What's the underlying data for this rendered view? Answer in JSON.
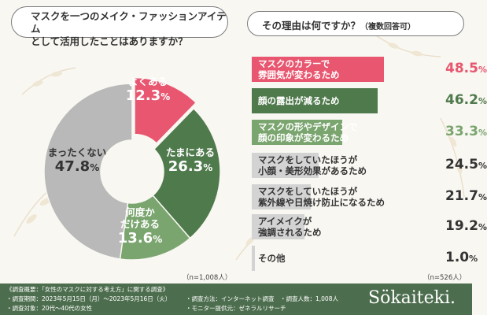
{
  "left_question": {
    "line1": "マスクを一つのメイク・ファッションアイテム",
    "line2": "として活用したことはありますか？",
    "n_note": "（n=1,008人）"
  },
  "right_question": {
    "main": "その理由は何ですか？",
    "sub": "（複数回答可）",
    "n_note": "（n=526人）"
  },
  "chart_data": [
    {
      "type": "pie",
      "title": "マスクを一つのメイク・ファッションアイテムとして活用したことはありますか？",
      "categories": [
        "よくある",
        "たまにある",
        "何度かだけある",
        "まったくない"
      ],
      "values": [
        12.3,
        26.3,
        13.6,
        47.8
      ],
      "colors": [
        "#e8566f",
        "#4f7a4c",
        "#7aa56e",
        "#b9b9b9"
      ],
      "labels": [
        {
          "line1": "よくある",
          "line2": "",
          "value": "12.3",
          "unit": "%"
        },
        {
          "line1": "たまにある",
          "line2": "",
          "value": "26.3",
          "unit": "%"
        },
        {
          "line1": "何度か",
          "line2": "だけある",
          "value": "13.6",
          "unit": "%"
        },
        {
          "line1": "まったくない",
          "line2": "",
          "value": "47.8",
          "unit": "%"
        }
      ],
      "style": "donut"
    },
    {
      "type": "bar",
      "orientation": "horizontal",
      "title": "その理由は何ですか？（複数回答可）",
      "categories": [
        "マスクのカラーで雰囲気が変わるため",
        "顔の露出が減るため",
        "マスクの形やデザインで顔の印象が変わるため",
        "マスクをしていたほうが小顔・美形効果があるため",
        "マスクをしていたほうが紫外線や日焼け防止になるため",
        "アイメイクが強調されるため",
        "その他"
      ],
      "values": [
        48.5,
        46.2,
        33.3,
        24.5,
        21.7,
        19.2,
        1.0
      ],
      "colors": [
        "#e8566f",
        "#4f7a4c",
        "#7aa56e",
        "#d3d3d3",
        "#d3d3d3",
        "#d3d3d3",
        "#d3d3d3"
      ],
      "value_colors": [
        "#e8566f",
        "#4f7a4c",
        "#7aa56e",
        "#333333",
        "#333333",
        "#333333",
        "#333333"
      ],
      "bars": [
        {
          "line1": "マスクのカラーで",
          "line2": "雰囲気が変わるため",
          "value": "48.5",
          "unit": "%"
        },
        {
          "line1": "顔の露出が減るため",
          "line2": "",
          "value": "46.2",
          "unit": "%"
        },
        {
          "line1": "マスクの形やデザインで",
          "line2": "顔の印象が変わるため",
          "value": "33.3",
          "unit": "%"
        },
        {
          "line1": "マスクをしていたほうが",
          "line2": "小顔・美形効果があるため",
          "value": "24.5",
          "unit": "%"
        },
        {
          "line1": "マスクをしていたほうが",
          "line2": "紫外線や日焼け防止になるため",
          "value": "21.7",
          "unit": "%"
        },
        {
          "line1": "アイメイクが",
          "line2": "強調されるため",
          "value": "19.2",
          "unit": "%"
        },
        {
          "line1": "その他",
          "line2": "",
          "value": "1.0",
          "unit": "%"
        }
      ]
    }
  ],
  "footer": {
    "survey_title": "《調査概要：「女性のマスクに対する考え方」に関する調査》",
    "period": "・調査期間：2023年5月15日（月）〜2023年5月16日（火）",
    "method": "・調査方法：インターネット調査",
    "count": "・調査人数：1,008人",
    "target": "・調査対象：20代〜40代の女性",
    "provider": "・モニター提供元：ゼネラルリサーチ",
    "brand": "Sökaiteki."
  }
}
